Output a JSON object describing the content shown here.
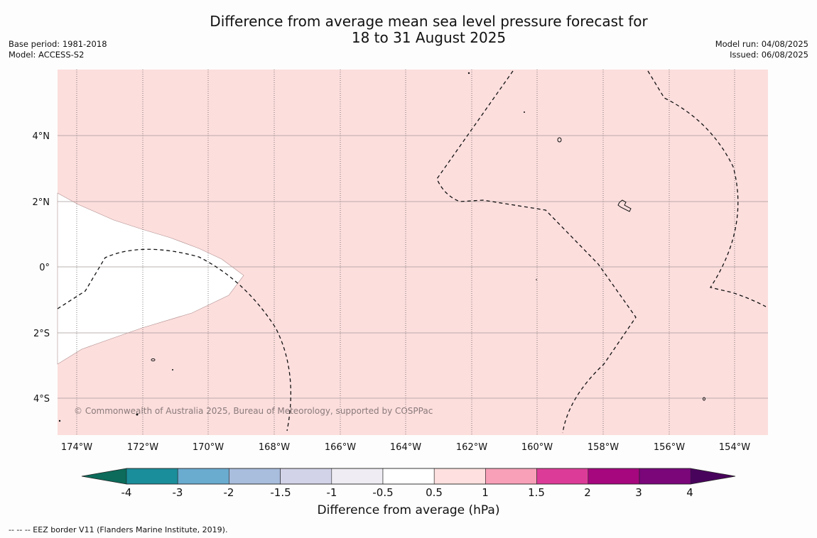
{
  "title": {
    "line1": "Difference from average mean sea level pressure forecast for",
    "line2": "18 to 31 August 2025"
  },
  "meta_left": {
    "base_period": "Base period: 1981-2018",
    "model": "Model: ACCESS-S2"
  },
  "meta_right": {
    "model_run": "Model run: 04/08/2025",
    "issued": "Issued: 06/08/2025"
  },
  "map": {
    "background_color": "#fcdedd",
    "lon_ticks": [
      "174°W",
      "172°W",
      "170°W",
      "168°W",
      "166°W",
      "164°W",
      "162°W",
      "160°W",
      "158°W",
      "156°W",
      "154°W"
    ],
    "lat_ticks": [
      "4°N",
      "2°N",
      "0°",
      "2°S",
      "4°S"
    ],
    "credit": "© Commonwealth of Australia 2025, Bureau of Meteorology, supported by COSPPac"
  },
  "colorbar": {
    "colors": [
      "#0c6b5a",
      "#1a8e9a",
      "#6aabd0",
      "#a9bddd",
      "#d2d2e8",
      "#efedf3",
      "#ffffff",
      "#fde0df",
      "#f8a0b8",
      "#dc3c98",
      "#a6067e",
      "#7a067a",
      "#48045c"
    ],
    "tick_labels": [
      "-4",
      "-3",
      "-2",
      "-1.5",
      "-1",
      "-0.5",
      "0.5",
      "1",
      "1.5",
      "2",
      "3",
      "4"
    ],
    "label": "Difference from average (hPa)"
  },
  "footnote": "--  --  -- EEZ border V11 (Flanders Marine Institute, 2019)."
}
